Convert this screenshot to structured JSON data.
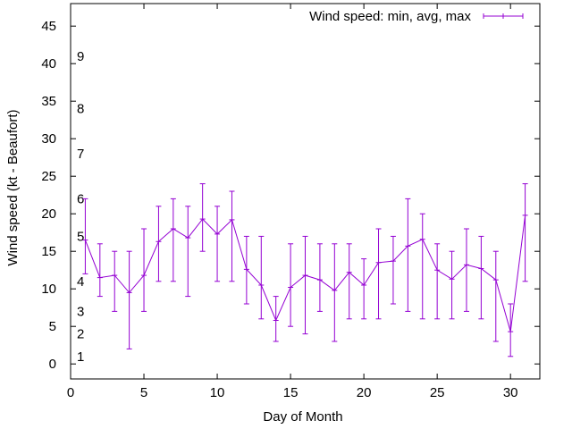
{
  "chart_data": {
    "type": "line",
    "title": "",
    "xlabel": "Day of Month",
    "ylabel": "Wind speed (kt - Beaufort)",
    "xlim": [
      0,
      32
    ],
    "ylim": [
      -2,
      48
    ],
    "xticks": [
      0,
      5,
      10,
      15,
      20,
      25,
      30
    ],
    "yticks": [
      0,
      5,
      10,
      15,
      20,
      25,
      30,
      35,
      40,
      45
    ],
    "beaufort_labels": [
      {
        "label": "1",
        "y": 1
      },
      {
        "label": "2",
        "y": 4
      },
      {
        "label": "3",
        "y": 7
      },
      {
        "label": "4",
        "y": 11
      },
      {
        "label": "5",
        "y": 17
      },
      {
        "label": "6",
        "y": 22
      },
      {
        "label": "7",
        "y": 28
      },
      {
        "label": "8",
        "y": 34
      },
      {
        "label": "9",
        "y": 41
      }
    ],
    "grid": false,
    "legend_position": "top-right",
    "series": [
      {
        "name": "Wind speed: min, avg, max",
        "color": "#9400d3",
        "points": [
          {
            "x": 1,
            "min": 12,
            "avg": 16.5,
            "max": 22
          },
          {
            "x": 2,
            "min": 9,
            "avg": 11.5,
            "max": 16
          },
          {
            "x": 3,
            "min": 7,
            "avg": 11.8,
            "max": 15
          },
          {
            "x": 4,
            "min": 2,
            "avg": 9.5,
            "max": 15
          },
          {
            "x": 5,
            "min": 7,
            "avg": 11.8,
            "max": 18
          },
          {
            "x": 6,
            "min": 11,
            "avg": 16.3,
            "max": 21
          },
          {
            "x": 7,
            "min": 11,
            "avg": 18,
            "max": 22
          },
          {
            "x": 8,
            "min": 9,
            "avg": 16.8,
            "max": 21
          },
          {
            "x": 9,
            "min": 15,
            "avg": 19.3,
            "max": 24
          },
          {
            "x": 10,
            "min": 11,
            "avg": 17.3,
            "max": 21
          },
          {
            "x": 11,
            "min": 11,
            "avg": 19.2,
            "max": 23
          },
          {
            "x": 12,
            "min": 8,
            "avg": 12.6,
            "max": 17
          },
          {
            "x": 13,
            "min": 6,
            "avg": 10.5,
            "max": 17
          },
          {
            "x": 14,
            "min": 3,
            "avg": 5.8,
            "max": 9
          },
          {
            "x": 15,
            "min": 5,
            "avg": 10.2,
            "max": 16
          },
          {
            "x": 16,
            "min": 4,
            "avg": 11.8,
            "max": 17
          },
          {
            "x": 17,
            "min": 7,
            "avg": 11.2,
            "max": 16
          },
          {
            "x": 18,
            "min": 3,
            "avg": 9.8,
            "max": 16
          },
          {
            "x": 19,
            "min": 6,
            "avg": 12.2,
            "max": 16
          },
          {
            "x": 20,
            "min": 6,
            "avg": 10.5,
            "max": 14
          },
          {
            "x": 21,
            "min": 6,
            "avg": 13.5,
            "max": 18
          },
          {
            "x": 22,
            "min": 8,
            "avg": 13.7,
            "max": 17
          },
          {
            "x": 23,
            "min": 7,
            "avg": 15.7,
            "max": 22
          },
          {
            "x": 24,
            "min": 6,
            "avg": 16.6,
            "max": 20
          },
          {
            "x": 25,
            "min": 6,
            "avg": 12.5,
            "max": 16
          },
          {
            "x": 26,
            "min": 6,
            "avg": 11.3,
            "max": 15
          },
          {
            "x": 27,
            "min": 7,
            "avg": 13.2,
            "max": 18
          },
          {
            "x": 28,
            "min": 6,
            "avg": 12.7,
            "max": 17
          },
          {
            "x": 29,
            "min": 3,
            "avg": 11.2,
            "max": 15
          },
          {
            "x": 30,
            "min": 1,
            "avg": 4.3,
            "max": 8
          },
          {
            "x": 31,
            "min": 11,
            "avg": 19.8,
            "max": 24
          }
        ]
      }
    ]
  }
}
